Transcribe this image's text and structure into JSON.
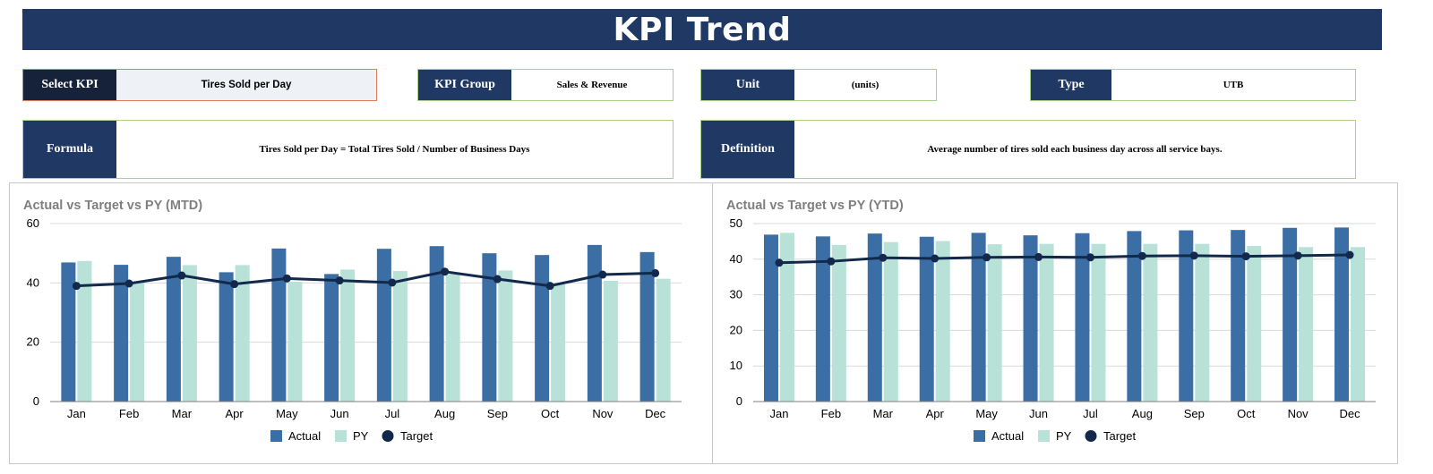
{
  "header": {
    "title": "KPI Trend"
  },
  "fields": {
    "select_kpi": {
      "label": "Select KPI",
      "value": "Tires Sold per Day"
    },
    "kpi_group": {
      "label": "KPI Group",
      "value": "Sales & Revenue"
    },
    "unit": {
      "label": "Unit",
      "value": "(units)"
    },
    "type": {
      "label": "Type",
      "value": "UTB"
    },
    "formula": {
      "label": "Formula",
      "value": "Tires Sold per Day = Total Tires Sold / Number of Business Days"
    },
    "definition": {
      "label": "Definition",
      "value": "Average number of tires sold each business day across all service bays."
    }
  },
  "colors": {
    "actual": "#3b6ea5",
    "py": "#b8e2d8",
    "target": "#13294b",
    "banner": "#1f3864"
  },
  "chart_data": [
    {
      "type": "bar",
      "title": "Actual vs Target vs PY (MTD)",
      "categories": [
        "Jan",
        "Feb",
        "Mar",
        "Apr",
        "May",
        "Jun",
        "Jul",
        "Aug",
        "Sep",
        "Oct",
        "Nov",
        "Dec"
      ],
      "ylim": [
        0,
        60
      ],
      "yticks": [
        "0",
        "20",
        "40",
        "60"
      ],
      "legend_position": "bottom",
      "series": [
        {
          "name": "Actual",
          "type": "bar",
          "values": [
            46.9,
            46.1,
            48.8,
            43.6,
            51.6,
            43.0,
            51.5,
            52.4,
            50.0,
            49.4,
            52.8,
            50.4
          ]
        },
        {
          "name": "PY",
          "type": "bar",
          "values": [
            47.4,
            40.1,
            46.0,
            46.0,
            40.4,
            44.5,
            44.0,
            43.0,
            44.2,
            39.5,
            40.7,
            41.4
          ]
        },
        {
          "name": "Target",
          "type": "line",
          "values": [
            39.0,
            39.8,
            42.5,
            39.6,
            41.5,
            40.8,
            40.1,
            43.8,
            41.3,
            39.0,
            42.8,
            43.3
          ]
        }
      ]
    },
    {
      "type": "bar",
      "title": "Actual vs Target vs PY (YTD)",
      "categories": [
        "Jan",
        "Feb",
        "Mar",
        "Apr",
        "May",
        "Jun",
        "Jul",
        "Aug",
        "Sep",
        "Oct",
        "Nov",
        "Dec"
      ],
      "ylim": [
        0,
        50
      ],
      "yticks": [
        "0",
        "10",
        "20",
        "30",
        "40",
        "50"
      ],
      "legend_position": "bottom",
      "series": [
        {
          "name": "Actual",
          "type": "bar",
          "values": [
            46.9,
            46.4,
            47.2,
            46.3,
            47.4,
            46.7,
            47.3,
            47.9,
            48.1,
            48.2,
            48.8,
            48.9
          ]
        },
        {
          "name": "PY",
          "type": "bar",
          "values": [
            47.4,
            44.0,
            44.8,
            45.1,
            44.2,
            44.3,
            44.3,
            44.3,
            44.3,
            43.7,
            43.4,
            43.4
          ]
        },
        {
          "name": "Target",
          "type": "line",
          "values": [
            39.0,
            39.4,
            40.4,
            40.2,
            40.5,
            40.6,
            40.5,
            40.9,
            41.0,
            40.8,
            41.0,
            41.2
          ]
        }
      ]
    }
  ]
}
